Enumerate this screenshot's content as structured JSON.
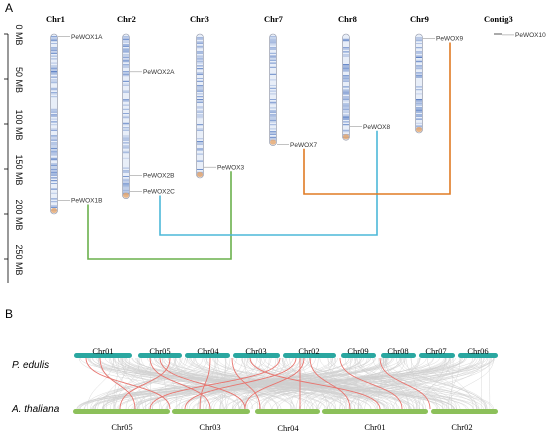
{
  "panel_a": {
    "label": "A",
    "scale_labels": [
      "0 MB",
      "50 MB",
      "100 MB",
      "150 MB",
      "200 MB",
      "250 MB"
    ],
    "chromosomes": [
      {
        "name": "Chr1",
        "length_mb": 200
      },
      {
        "name": "Chr2",
        "length_mb": 183
      },
      {
        "name": "Chr3",
        "length_mb": 160
      },
      {
        "name": "Chr7",
        "length_mb": 124
      },
      {
        "name": "Chr8",
        "length_mb": 118
      },
      {
        "name": "Chr9",
        "length_mb": 110
      },
      {
        "name": "Contig3",
        "length_mb": 1
      }
    ],
    "genes": [
      {
        "name": "PeWOX1A",
        "chr": "Chr1",
        "pos_mb": 3
      },
      {
        "name": "PeWOX1B",
        "chr": "Chr1",
        "pos_mb": 185
      },
      {
        "name": "PeWOX2A",
        "chr": "Chr2",
        "pos_mb": 42
      },
      {
        "name": "PeWOX2B",
        "chr": "Chr2",
        "pos_mb": 157
      },
      {
        "name": "PeWOX2C",
        "chr": "Chr2",
        "pos_mb": 175
      },
      {
        "name": "PeWOX3",
        "chr": "Chr3",
        "pos_mb": 148
      },
      {
        "name": "PeWOX7",
        "chr": "Chr7",
        "pos_mb": 123
      },
      {
        "name": "PeWOX8",
        "chr": "Chr8",
        "pos_mb": 103
      },
      {
        "name": "PeWOX9",
        "chr": "Chr9",
        "pos_mb": 5
      },
      {
        "name": "PeWOX10",
        "chr": "Contig3",
        "pos_mb": 1
      }
    ],
    "links": [
      {
        "from": "PeWOX1B",
        "to": "PeWOX3",
        "color": "#6ab04c"
      },
      {
        "from": "PeWOX2C",
        "to": "PeWOX8",
        "color": "#4cb8d8"
      },
      {
        "from": "PeWOX7",
        "to": "PeWOX9",
        "color": "#e07b24"
      }
    ],
    "colors": {
      "chromosome_band": "#5b7fc4",
      "chromosome_fill": "#e8eef8",
      "chromosome_tip": "#e8a86c"
    }
  },
  "panel_b": {
    "label": "B",
    "species_top": "P. edulis",
    "species_bottom": "A. thaliana",
    "top_chromosomes": [
      "Chr01",
      "Chr05",
      "Chr04",
      "Chr03",
      "Chr02",
      "Chr09",
      "Chr08",
      "Chr07",
      "Chr06"
    ],
    "bottom_chromosomes": [
      "Chr05",
      "Chr03",
      "Chr04",
      "Chr01",
      "Chr02"
    ],
    "colors": {
      "top_bar": "#2aa7a0",
      "bottom_bar": "#8cc05a",
      "background_links": "#cfcfcf",
      "highlight_links": "#e8746e"
    }
  }
}
